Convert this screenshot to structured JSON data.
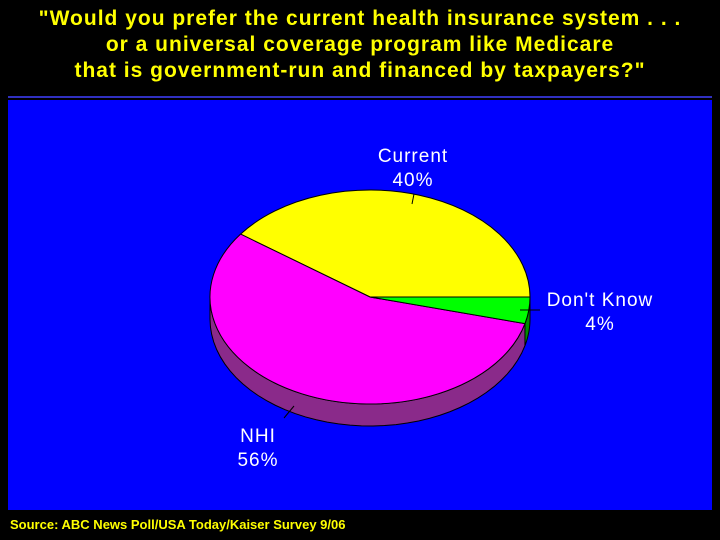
{
  "title": {
    "line1": "\"Would you prefer the current health insurance system . . .",
    "line2": "or a universal coverage program like Medicare",
    "line3": "that is government-run and financed by taxpayers?\""
  },
  "source": "Source: ABC News Poll/USA Today/Kaiser Survey 9/06",
  "colors": {
    "background": "#000000",
    "panel": "#0000ff",
    "title_text": "#ffff00",
    "label_text": "#ffffff",
    "current": "#ffff00",
    "nhi": "#ff00ff",
    "dont_know": "#00ff00",
    "nhi_side": "#8a2a8a"
  },
  "chart_data": {
    "type": "pie",
    "style": "3d",
    "slices": [
      {
        "label": "Current",
        "value": 40,
        "value_label": "40%",
        "color": "#ffff00"
      },
      {
        "label": "Don't Know",
        "value": 4,
        "value_label": "4%",
        "color": "#00ff00"
      },
      {
        "label": "NHI",
        "value": 56,
        "value_label": "56%",
        "color": "#ff00ff"
      }
    ]
  }
}
